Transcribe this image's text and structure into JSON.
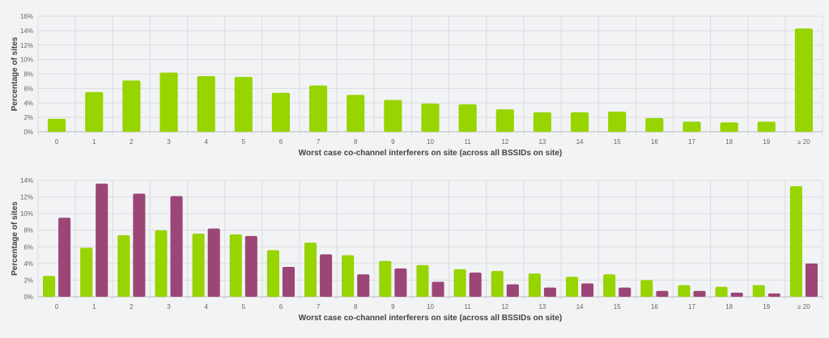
{
  "chart_data": [
    {
      "type": "bar",
      "title": "",
      "xlabel": "Worst case co-channel interferers on site (across all BSSIDs on site)",
      "ylabel": "Percentage of sites",
      "ylim": [
        0,
        16
      ],
      "yticks": [
        "0%",
        "2%",
        "4%",
        "6%",
        "8%",
        "10%",
        "12%",
        "14%",
        "16%"
      ],
      "grid": true,
      "categories": [
        "0",
        "1",
        "2",
        "3",
        "4",
        "5",
        "6",
        "7",
        "8",
        "9",
        "10",
        "11",
        "12",
        "13",
        "14",
        "15",
        "16",
        "17",
        "18",
        "19",
        "≥ 20"
      ],
      "series": [
        {
          "name": "series1",
          "color": "#97d400",
          "values": [
            1.8,
            5.5,
            7.1,
            8.2,
            7.7,
            7.6,
            5.4,
            6.4,
            5.1,
            4.4,
            3.9,
            3.8,
            3.1,
            2.7,
            2.7,
            2.8,
            1.9,
            1.4,
            1.3,
            1.4,
            14.3
          ]
        }
      ]
    },
    {
      "type": "bar",
      "title": "",
      "xlabel": "Worst case co-channel interferers on site (across all BSSIDs on site)",
      "ylabel": "Percentage of sites",
      "ylim": [
        0,
        14
      ],
      "yticks": [
        "0%",
        "2%",
        "4%",
        "6%",
        "8%",
        "10%",
        "12%",
        "14%"
      ],
      "grid": true,
      "categories": [
        "0",
        "1",
        "2",
        "3",
        "4",
        "5",
        "6",
        "7",
        "8",
        "9",
        "10",
        "11",
        "12",
        "13",
        "14",
        "15",
        "16",
        "17",
        "18",
        "19",
        "≥ 20"
      ],
      "series": [
        {
          "name": "series1",
          "color": "#97d400",
          "values": [
            2.5,
            5.9,
            7.4,
            8.0,
            7.6,
            7.5,
            5.6,
            6.5,
            5.0,
            4.3,
            3.8,
            3.3,
            3.1,
            2.8,
            2.4,
            2.7,
            2.0,
            1.4,
            1.2,
            1.4,
            13.3
          ]
        },
        {
          "name": "series2",
          "color": "#9b4677",
          "values": [
            9.5,
            13.6,
            12.4,
            12.1,
            8.2,
            7.3,
            3.6,
            5.1,
            2.7,
            3.4,
            1.8,
            2.9,
            1.5,
            1.1,
            1.6,
            1.1,
            0.7,
            0.7,
            0.5,
            0.4,
            4.0
          ]
        }
      ]
    }
  ]
}
